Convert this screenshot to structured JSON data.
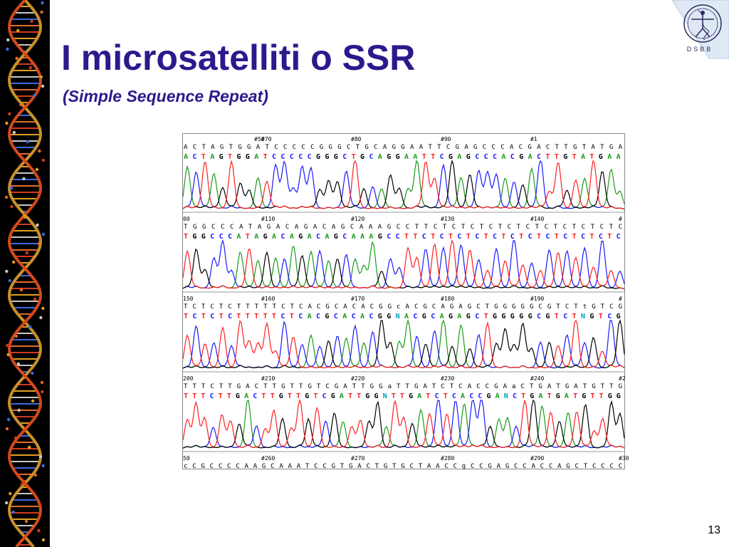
{
  "slide": {
    "title": "I microsatelliti o SSR",
    "subtitle": "(Simple Sequence Repeat)",
    "page_number": "13",
    "logo_text": "DSBB"
  },
  "colors": {
    "title": "#2b1a8c",
    "A": "#1a9a1a",
    "C": "#1a1aff",
    "G": "#000000",
    "T": "#ff2020",
    "N": "#00a0c0",
    "edited": "#ff00ff",
    "logo_bg": "#dfe9f6"
  },
  "icons": {
    "left_strip": "dna-helix-strip-icon",
    "logo": "vitruvian-dna-logo-icon"
  },
  "chromatogram": {
    "panels": [
      {
        "ticks": [
          "#50",
          "#70",
          "#80",
          "#90",
          "#1"
        ],
        "raw": "A C T A G T G G A T C C C C C G G G C T G C A G G A A T T C G A G C C C A C G A C T T G T A T G A",
        "called": "ACTAGTGGATCCCCCGGGCTGCAGGAATTCGAGCCCACGACTTGTATGAA"
      },
      {
        "ticks": [
          "00",
          "#110",
          "#120",
          "#130",
          "#140",
          "#"
        ],
        "raw": "T G G C C C A T A G A C A G A C A G C A A A G C C T T C T C T C T C T C T C T C T C T C T C T C",
        "called": "TGGCCCATAGACAGACAGCAAAGCCTTCTCTCTCTCTCTCTCTCTCTCTC"
      },
      {
        "ticks": [
          "150",
          "#160",
          "#170",
          "#180",
          "#190",
          "#"
        ],
        "raw": "T C T C T C T T T T T C T C A C G C A C A C G G c A C G C A G A G C T G G G G G C G T C T t G T C G",
        "called": "TCTCTCTTTTTCTCACGCACACGGNACGCAGAGCTGGGGGCGTCTNGTCG"
      },
      {
        "ticks": [
          "200",
          "#210",
          "#220",
          "#230",
          "#240",
          "#2"
        ],
        "raw": "T T T C T T G A C T T G T T G T C G A T T G G a T T G A T C T C A C C G A a C T G A T G A T G T T G",
        "called": "TTTCTTGACTTGTTGTCGATTGGNTTGATCTCACCGANCTGATGATGTTGG"
      },
      {
        "ticks": [
          "50",
          "#260",
          "#270",
          "#280",
          "#290",
          "#30"
        ],
        "raw": "c C G C C C C A A G C A A A T C C G T G A C T G T G C T A A C C g C C G A G C C A C C A G C T C C C C"
      }
    ]
  }
}
